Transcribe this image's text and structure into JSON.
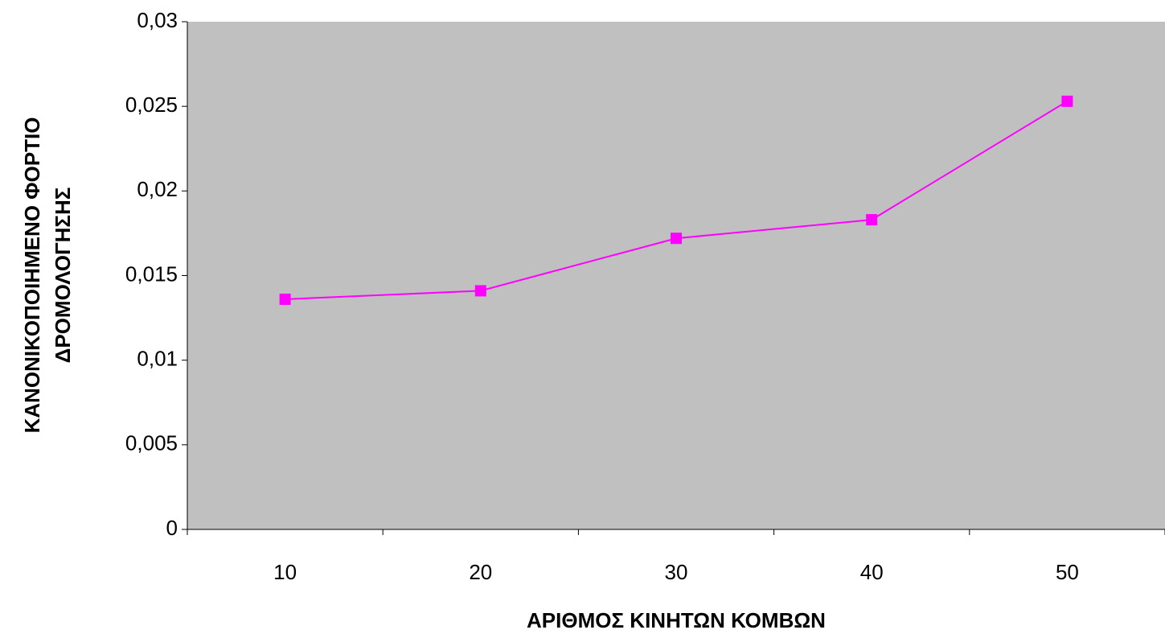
{
  "chart_data": {
    "type": "line",
    "x_label": "ΑΡΙΘΜΟΣ ΚΙΝΗΤΩΝ ΚΟΜΒΩΝ",
    "y_label": [
      "ΚΑΝΟΝΙΚΟΠΟΙΗΜΕΝΟ ΦΟΡΤΙΟ",
      "ΔΡΟΜΟΛΟΓΗΣΗΣ"
    ],
    "categories": [
      "10",
      "20",
      "30",
      "40",
      "50"
    ],
    "series": [
      {
        "color": "#ff00ff",
        "values": [
          0.0136,
          0.0141,
          0.0172,
          0.0183,
          0.0253
        ]
      }
    ],
    "ylim": [
      0,
      0.03
    ],
    "yticks": [
      0,
      {
        "value": 0.005,
        "label": "0,005"
      },
      {
        "value": 0.01,
        "label": "0,01"
      },
      {
        "value": 0.015,
        "label": "0,015"
      },
      {
        "value": 0.02,
        "label": "0,02"
      },
      {
        "value": 0.025,
        "label": "0,025"
      },
      {
        "value": 0.03,
        "label": "0,03"
      }
    ],
    "plot_background": "#c0c0c0"
  }
}
